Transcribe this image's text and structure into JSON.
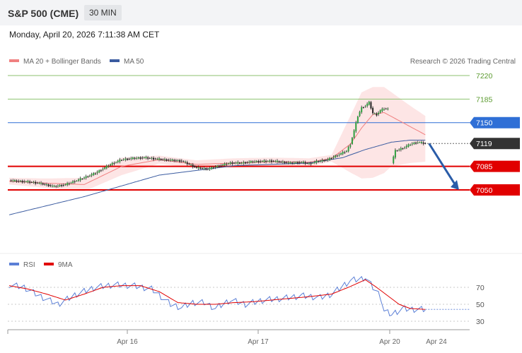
{
  "header": {
    "symbol": "S&P 500 (CME)",
    "timeframe": "30 MIN"
  },
  "datetime": "Monday, April 20, 2026 7:11:38 AM CET",
  "legend": {
    "ma20": "MA 20 + Bollinger Bands",
    "ma50": "MA 50",
    "credit": "Research © 2026 Trading Central"
  },
  "colors": {
    "ma20": "#f08080",
    "ma50": "#3a5ba0",
    "resistance": "#2f6fd6",
    "support": "#e10000",
    "target_line": "#8dc26f",
    "current": "#333333",
    "arrow": "#2a5ca8",
    "rsi": "#5b7fd6",
    "rsi_ma": "#e10000"
  },
  "chart_data": [
    {
      "type": "line",
      "title": "",
      "x_labels": [
        "Apr 16",
        "Apr 17",
        "Apr 20",
        "Apr 24"
      ],
      "ylim": [
        7010,
        7235
      ],
      "levels": [
        {
          "label": "7220",
          "value": 7220,
          "kind": "target"
        },
        {
          "label": "7185",
          "value": 7185,
          "kind": "target"
        },
        {
          "label": "7150",
          "value": 7150,
          "kind": "resistance"
        },
        {
          "label": "7119",
          "value": 7119,
          "kind": "current"
        },
        {
          "label": "7085",
          "value": 7085,
          "kind": "support"
        },
        {
          "label": "7050",
          "value": 7050,
          "kind": "support"
        }
      ],
      "close_anchors": [
        [
          0,
          7064
        ],
        [
          10,
          7062
        ],
        [
          16,
          7060
        ],
        [
          24,
          7055
        ],
        [
          30,
          7058
        ],
        [
          38,
          7066
        ],
        [
          46,
          7075
        ],
        [
          54,
          7088
        ],
        [
          60,
          7095
        ],
        [
          66,
          7097
        ],
        [
          72,
          7098
        ],
        [
          82,
          7095
        ],
        [
          92,
          7093
        ],
        [
          96,
          7088
        ],
        [
          100,
          7083
        ],
        [
          106,
          7081
        ],
        [
          112,
          7086
        ],
        [
          118,
          7090
        ],
        [
          124,
          7090
        ],
        [
          130,
          7092
        ],
        [
          140,
          7093
        ],
        [
          150,
          7090
        ],
        [
          156,
          7091
        ],
        [
          160,
          7089
        ],
        [
          164,
          7092
        ],
        [
          170,
          7095
        ],
        [
          180,
          7108
        ],
        [
          182,
          7118
        ],
        [
          184,
          7138
        ],
        [
          186,
          7160
        ],
        [
          188,
          7172
        ],
        [
          190,
          7175
        ],
        [
          192,
          7180
        ],
        [
          194,
          7164
        ],
        [
          196,
          7162
        ],
        [
          198,
          7168
        ],
        [
          200,
          7171
        ],
        [
          202,
          7170
        ]
      ],
      "close_anchors_2": [
        [
          204,
          7090
        ],
        [
          206,
          7108
        ],
        [
          210,
          7112
        ],
        [
          214,
          7118
        ],
        [
          218,
          7121
        ],
        [
          222,
          7119
        ]
      ],
      "series": [
        {
          "name": "MA 20 + Bollinger Bands",
          "anchors": [
            [
              0,
              7063
            ],
            [
              20,
              7060
            ],
            [
              40,
              7058
            ],
            [
              60,
              7085
            ],
            [
              80,
              7095
            ],
            [
              100,
              7088
            ],
            [
              120,
              7090
            ],
            [
              140,
              7092
            ],
            [
              160,
              7091
            ],
            [
              172,
              7097
            ],
            [
              182,
              7118
            ],
            [
              188,
              7142
            ],
            [
              194,
              7162
            ],
            [
              200,
              7165
            ],
            [
              210,
              7150
            ],
            [
              222,
              7132
            ]
          ]
        },
        {
          "name": "MA 50",
          "anchors": [
            [
              0,
              7013
            ],
            [
              40,
              7040
            ],
            [
              80,
              7072
            ],
            [
              120,
              7086
            ],
            [
              160,
              7090
            ],
            [
              178,
              7098
            ],
            [
              190,
              7110
            ],
            [
              204,
              7121
            ],
            [
              214,
              7124
            ],
            [
              222,
              7124
            ]
          ]
        }
      ],
      "bollinger": {
        "upper": [
          [
            0,
            7068
          ],
          [
            20,
            7067
          ],
          [
            40,
            7068
          ],
          [
            60,
            7098
          ],
          [
            80,
            7101
          ],
          [
            100,
            7094
          ],
          [
            120,
            7097
          ],
          [
            140,
            7098
          ],
          [
            160,
            7097
          ],
          [
            172,
            7102
          ],
          [
            182,
            7160
          ],
          [
            188,
            7195
          ],
          [
            194,
            7203
          ],
          [
            200,
            7203
          ],
          [
            204,
            7195
          ],
          [
            214,
            7175
          ],
          [
            222,
            7160
          ]
        ],
        "lower": [
          [
            0,
            7058
          ],
          [
            20,
            7053
          ],
          [
            40,
            7048
          ],
          [
            60,
            7072
          ],
          [
            80,
            7089
          ],
          [
            100,
            7082
          ],
          [
            120,
            7083
          ],
          [
            140,
            7086
          ],
          [
            160,
            7085
          ],
          [
            172,
            7092
          ],
          [
            182,
            7076
          ],
          [
            188,
            7067
          ],
          [
            194,
            7068
          ],
          [
            200,
            7075
          ],
          [
            204,
            7085
          ],
          [
            214,
            7090
          ],
          [
            222,
            7092
          ]
        ]
      },
      "forecast_arrow": {
        "from": [
          224,
          7119
        ],
        "to": [
          240,
          7050
        ]
      }
    },
    {
      "type": "line",
      "title": "",
      "ylim": [
        20,
        90
      ],
      "y_ticks": [
        30,
        50,
        70
      ],
      "series": [
        {
          "name": "RSI",
          "anchors": [
            [
              0,
              73
            ],
            [
              8,
              70
            ],
            [
              16,
              60
            ],
            [
              26,
              50
            ],
            [
              36,
              62
            ],
            [
              46,
              70
            ],
            [
              56,
              73
            ],
            [
              66,
              72
            ],
            [
              76,
              68
            ],
            [
              86,
              50
            ],
            [
              92,
              46
            ],
            [
              98,
              52
            ],
            [
              104,
              52
            ],
            [
              110,
              45
            ],
            [
              118,
              55
            ],
            [
              126,
              50
            ],
            [
              136,
              55
            ],
            [
              146,
              57
            ],
            [
              156,
              60
            ],
            [
              166,
              58
            ],
            [
              172,
              62
            ],
            [
              182,
              78
            ],
            [
              188,
              80
            ],
            [
              190,
              82
            ],
            [
              194,
              70
            ],
            [
              198,
              60
            ],
            [
              200,
              42
            ],
            [
              204,
              38
            ],
            [
              210,
              45
            ],
            [
              214,
              44
            ],
            [
              222,
              44
            ]
          ]
        },
        {
          "name": "9MA",
          "anchors": [
            [
              0,
              72
            ],
            [
              10,
              68
            ],
            [
              20,
              62
            ],
            [
              30,
              55
            ],
            [
              40,
              62
            ],
            [
              50,
              70
            ],
            [
              60,
              72
            ],
            [
              70,
              72
            ],
            [
              80,
              65
            ],
            [
              90,
              52
            ],
            [
              100,
              50
            ],
            [
              110,
              50
            ],
            [
              120,
              52
            ],
            [
              130,
              53
            ],
            [
              140,
              55
            ],
            [
              150,
              57
            ],
            [
              160,
              59
            ],
            [
              172,
              62
            ],
            [
              182,
              71
            ],
            [
              190,
              79
            ],
            [
              196,
              70
            ],
            [
              202,
              60
            ],
            [
              208,
              50
            ],
            [
              214,
              45
            ],
            [
              222,
              44
            ]
          ]
        }
      ]
    }
  ]
}
